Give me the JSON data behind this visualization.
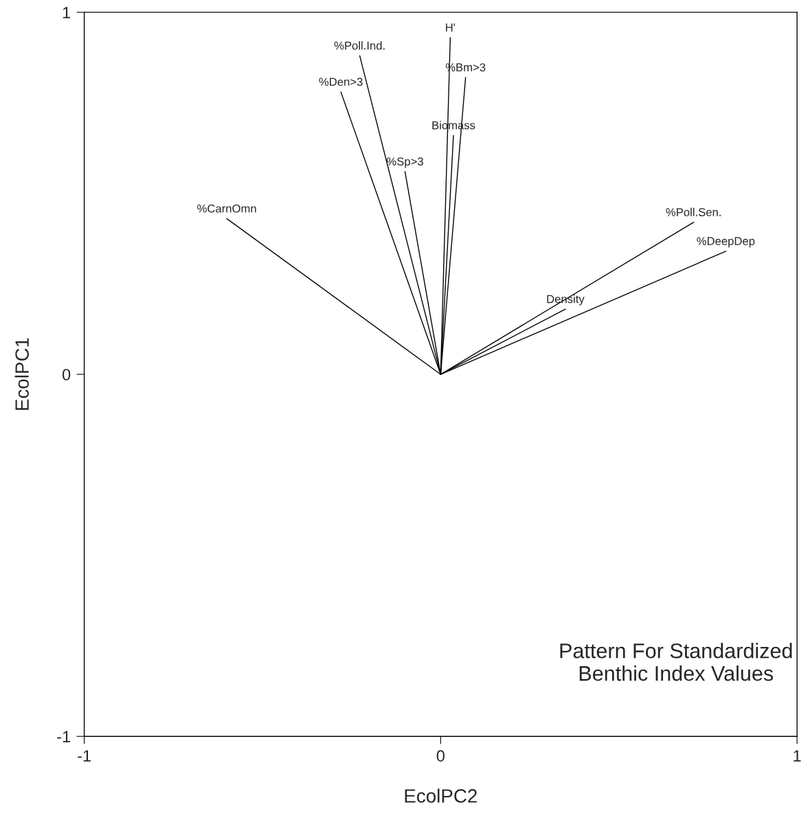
{
  "chart_data": {
    "type": "line",
    "xlabel": "EcolPC2",
    "ylabel": "EcolPC1",
    "xlim": [
      -1,
      1
    ],
    "ylim": [
      -1,
      1
    ],
    "xticks": [
      -1,
      0,
      1
    ],
    "yticks": [
      -1,
      0,
      1
    ],
    "grid": false,
    "legend": false,
    "marker": "none",
    "line_style": "solid",
    "annotations": [
      "Pattern For Standardized\nBenthic Index Values"
    ],
    "series": [
      {
        "name": "H'",
        "color": "#000000",
        "x": [
          0,
          0.027
        ],
        "values": [
          0,
          0.93
        ]
      },
      {
        "name": "%Poll.Ind.",
        "color": "#000000",
        "x": [
          0,
          -0.227
        ],
        "values": [
          0,
          0.88
        ]
      },
      {
        "name": "%Bm>3",
        "color": "#000000",
        "x": [
          0,
          0.07
        ],
        "values": [
          0,
          0.82
        ]
      },
      {
        "name": "%Den>3",
        "color": "#000000",
        "x": [
          0,
          -0.28
        ],
        "values": [
          0,
          0.78
        ]
      },
      {
        "name": "Biomass",
        "color": "#000000",
        "x": [
          0,
          0.036
        ],
        "values": [
          0,
          0.66
        ]
      },
      {
        "name": "%Sp>3",
        "color": "#000000",
        "x": [
          0,
          -0.1
        ],
        "values": [
          0,
          0.56
        ]
      },
      {
        "name": "%CarnOmn",
        "color": "#000000",
        "x": [
          0,
          -0.6
        ],
        "values": [
          0,
          0.43
        ]
      },
      {
        "name": "%Poll.Sen.",
        "color": "#000000",
        "x": [
          0,
          0.71
        ],
        "values": [
          0,
          0.42
        ]
      },
      {
        "name": "%DeepDep",
        "color": "#000000",
        "x": [
          0,
          0.8
        ],
        "values": [
          0,
          0.34
        ]
      },
      {
        "name": "Density",
        "color": "#000000",
        "x": [
          0,
          0.35
        ],
        "values": [
          0,
          0.18
        ]
      }
    ]
  }
}
